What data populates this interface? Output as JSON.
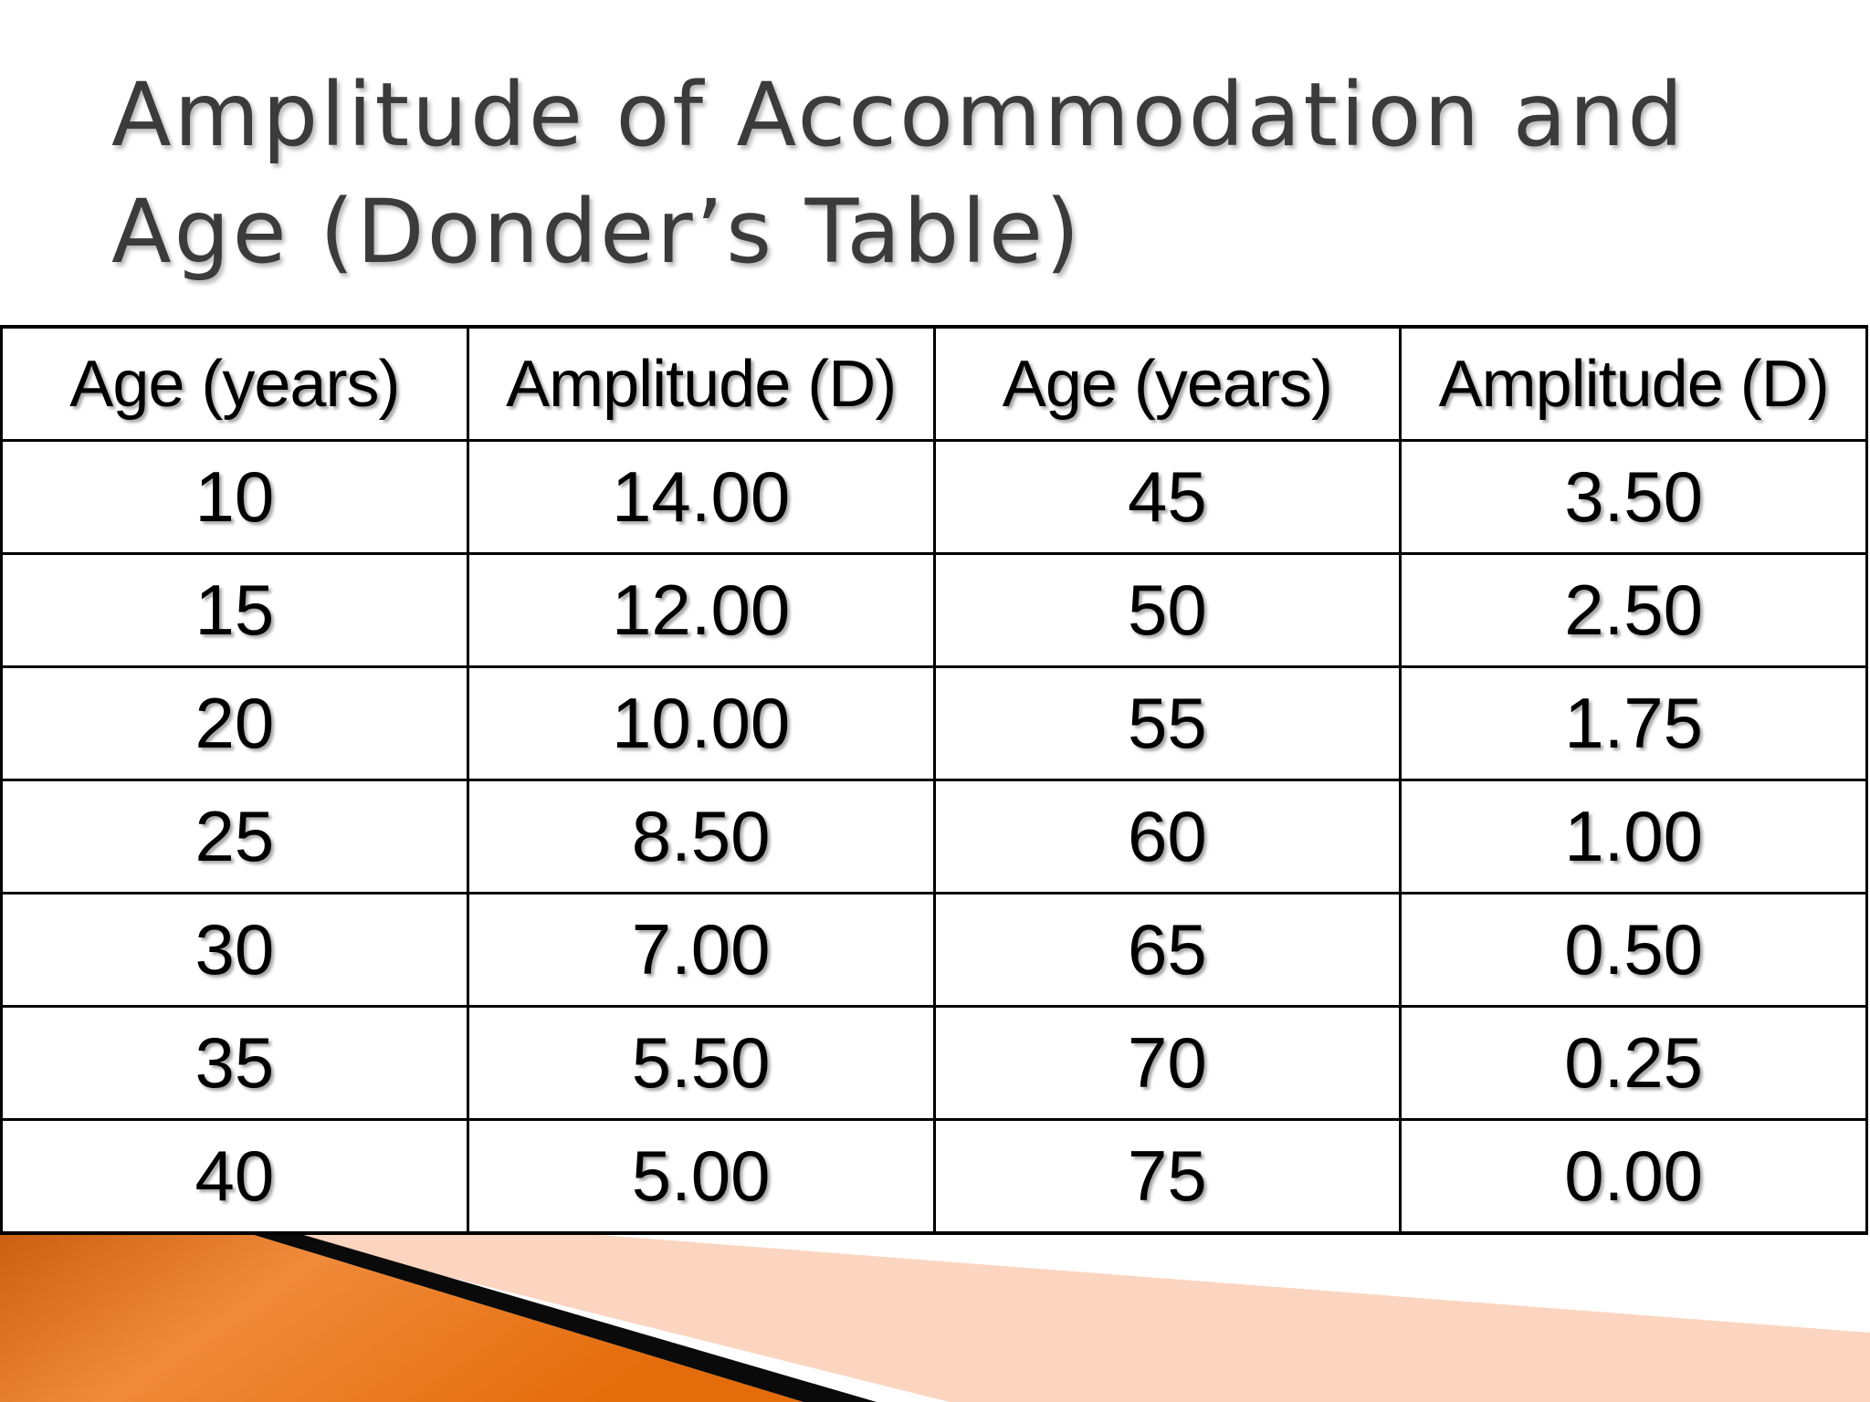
{
  "slide": {
    "title_line1": "Amplitude of Accommodation and",
    "title_line2": "Age (Donder’s Table)"
  },
  "table": {
    "headers": [
      "Age (years)",
      "Amplitude (D)",
      "Age (years)",
      "Amplitude (D)"
    ],
    "rows": [
      [
        "10",
        "14.00",
        "45",
        "3.50"
      ],
      [
        "15",
        "12.00",
        "50",
        "2.50"
      ],
      [
        "20",
        "10.00",
        "55",
        "1.75"
      ],
      [
        "25",
        "8.50",
        "60",
        "1.00"
      ],
      [
        "30",
        "7.00",
        "65",
        "0.50"
      ],
      [
        "35",
        "5.50",
        "70",
        "0.25"
      ],
      [
        "40",
        "5.00",
        "75",
        "0.00"
      ]
    ]
  },
  "theme": {
    "accent_orange": "#e46c0a",
    "accent_peach": "#fbd5c0",
    "title_color": "#3b3b3b",
    "border_color": "#000000"
  }
}
